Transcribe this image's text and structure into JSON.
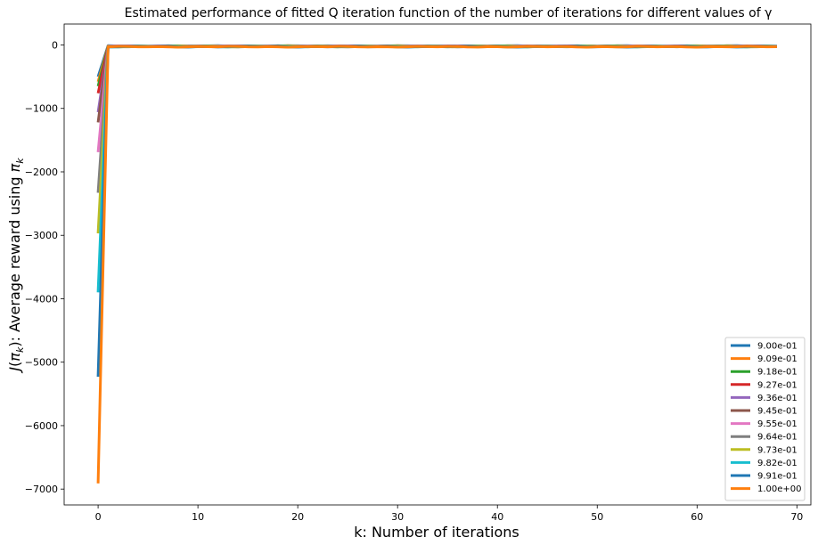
{
  "chart_data": {
    "type": "line",
    "title": "Estimated performance of fitted Q iteration function of the number of iterations for different values of γ",
    "xlabel": "k: Number of iterations",
    "ylabel": "J(π_k): Average reward using π_k",
    "ylabel_parts": {
      "j": "J",
      "open": "(",
      "pi": "π",
      "k": "k",
      "close": "): Average reward using ",
      "pi2": "π",
      "k2": "k"
    },
    "xlim": [
      -3.4,
      71.4
    ],
    "ylim": [
      -7250,
      330
    ],
    "xticks": [
      0,
      10,
      20,
      30,
      40,
      50,
      60,
      70
    ],
    "yticks": [
      0,
      -1000,
      -2000,
      -3000,
      -4000,
      -5000,
      -6000,
      -7000
    ],
    "ytick_labels": [
      "0",
      "−1000",
      "−2000",
      "−3000",
      "−4000",
      "−5000",
      "−6000",
      "−7000"
    ],
    "grid": false,
    "legend_position": "bottom-right",
    "x_max": 68,
    "series": [
      {
        "name": "9.00e-01",
        "color": "#1f77b4",
        "start": -500,
        "plateau": -17
      },
      {
        "name": "9.09e-01",
        "color": "#ff7f0e",
        "start": -580,
        "plateau": -18
      },
      {
        "name": "9.18e-01",
        "color": "#2ca02c",
        "start": -650,
        "plateau": -19
      },
      {
        "name": "9.27e-01",
        "color": "#d62728",
        "start": -760,
        "plateau": -20
      },
      {
        "name": "9.36e-01",
        "color": "#9467bd",
        "start": -1060,
        "plateau": -21
      },
      {
        "name": "9.45e-01",
        "color": "#8c564b",
        "start": -1220,
        "plateau": -22
      },
      {
        "name": "9.55e-01",
        "color": "#e377c2",
        "start": -1690,
        "plateau": -23
      },
      {
        "name": "9.64e-01",
        "color": "#7f7f7f",
        "start": -2330,
        "plateau": -24
      },
      {
        "name": "9.73e-01",
        "color": "#bcbd22",
        "start": -2970,
        "plateau": -25
      },
      {
        "name": "9.82e-01",
        "color": "#17becf",
        "start": -3900,
        "plateau": -26
      },
      {
        "name": "9.91e-01",
        "color": "#1f77b4",
        "start": -5230,
        "plateau": -27
      },
      {
        "name": "1.00e+00",
        "color": "#ff7f0e",
        "start": -6910,
        "plateau": -28
      }
    ]
  }
}
